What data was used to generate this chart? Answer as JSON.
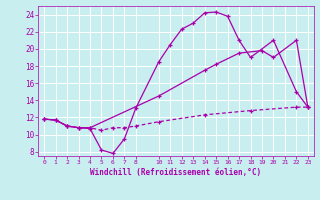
{
  "xlabel": "Windchill (Refroidissement éolien,°C)",
  "bg_color": "#c8eef0",
  "line_color": "#aa00aa",
  "grid_color": "#ffffff",
  "xlim": [
    -0.5,
    23.5
  ],
  "ylim": [
    7.5,
    25.0
  ],
  "xticks": [
    0,
    1,
    2,
    3,
    4,
    5,
    6,
    7,
    8,
    10,
    11,
    12,
    13,
    14,
    15,
    16,
    17,
    18,
    19,
    20,
    21,
    22,
    23
  ],
  "yticks": [
    8,
    10,
    12,
    14,
    16,
    18,
    20,
    22,
    24
  ],
  "line1_x": [
    0,
    1,
    2,
    3,
    4,
    5,
    6,
    7,
    8,
    10,
    11,
    12,
    13,
    14,
    15,
    16,
    17,
    18,
    20,
    22,
    23
  ],
  "line1_y": [
    11.8,
    11.7,
    11.0,
    10.8,
    10.7,
    8.2,
    7.8,
    9.5,
    13.1,
    18.5,
    20.5,
    22.3,
    23.0,
    24.2,
    24.3,
    23.8,
    21.0,
    19.0,
    21.0,
    15.0,
    13.2
  ],
  "line2_x": [
    0,
    1,
    2,
    3,
    4,
    10,
    14,
    15,
    17,
    19,
    20,
    22,
    23
  ],
  "line2_y": [
    11.8,
    11.7,
    11.0,
    10.8,
    10.8,
    14.5,
    17.5,
    18.2,
    19.5,
    19.8,
    19.0,
    21.0,
    13.2
  ],
  "line3_x": [
    0,
    1,
    2,
    3,
    4,
    5,
    6,
    7,
    8,
    10,
    14,
    18,
    22,
    23
  ],
  "line3_y": [
    11.8,
    11.7,
    11.0,
    10.8,
    10.8,
    10.5,
    10.8,
    10.8,
    11.0,
    11.5,
    12.3,
    12.8,
    13.2,
    13.2
  ]
}
